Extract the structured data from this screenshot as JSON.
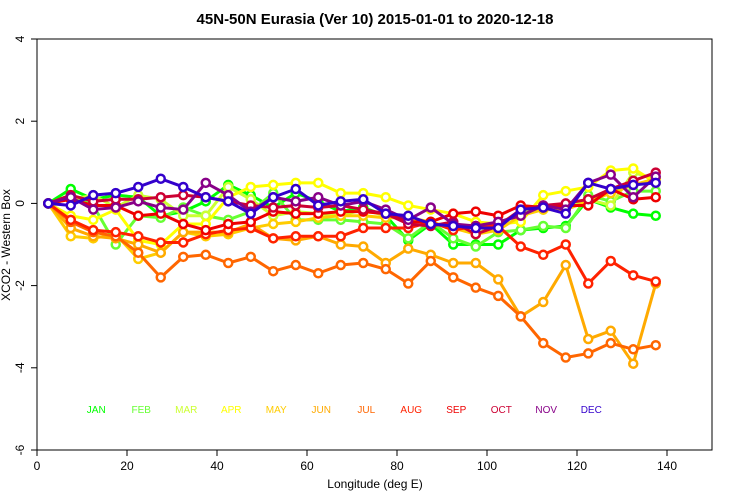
{
  "chart_data": {
    "type": "line",
    "title": "45N-50N Eurasia (Ver 10)   2015-01-01 to 2020-12-18",
    "xlabel": "Longitude (deg E)",
    "ylabel": "XCO2 - Western Box",
    "xlim": [
      0,
      150
    ],
    "ylim": [
      -6,
      4
    ],
    "xticks": [
      0,
      20,
      40,
      60,
      80,
      100,
      120,
      140
    ],
    "yticks": [
      -6,
      -4,
      -2,
      0,
      2,
      4
    ],
    "x": [
      2.5,
      7.5,
      12.5,
      17.5,
      22.5,
      27.5,
      32.5,
      37.5,
      42.5,
      47.5,
      52.5,
      57.5,
      62.5,
      67.5,
      72.5,
      77.5,
      82.5,
      87.5,
      92.5,
      97.5,
      102.5,
      107.5,
      112.5,
      117.5,
      122.5,
      127.5,
      132.5,
      137.5
    ],
    "series": [
      {
        "name": "JAN",
        "color": "#00ff00",
        "values": [
          0,
          0.35,
          0.1,
          0.2,
          0.15,
          -0.3,
          -0.2,
          0.05,
          0.45,
          0.2,
          -0.1,
          0.25,
          0.05,
          -0.2,
          -0.1,
          -0.3,
          -0.9,
          -0.5,
          -1.0,
          -1.0,
          -1.0,
          -0.65,
          -0.6,
          -0.55,
          0.1,
          -0.1,
          -0.25,
          -0.3
        ]
      },
      {
        "name": "FEB",
        "color": "#66ff33",
        "values": [
          0,
          0.2,
          -0.05,
          -1.0,
          -0.3,
          -0.35,
          -0.1,
          -0.3,
          -0.4,
          -0.2,
          0.25,
          -0.4,
          -0.4,
          -0.4,
          -0.45,
          -0.5,
          -0.85,
          -0.45,
          -0.85,
          -1.05,
          -0.7,
          -0.65,
          -0.55,
          -0.6,
          0.2,
          0.05,
          0.3,
          0.3
        ]
      },
      {
        "name": "MAR",
        "color": "#ccff33",
        "values": [
          0,
          0.1,
          0.2,
          -0.1,
          0.2,
          0.1,
          -0.3,
          -0.3,
          0.4,
          0.1,
          -0.3,
          -0.2,
          -0.25,
          -0.3,
          -0.15,
          -0.3,
          -0.35,
          -0.5,
          -0.55,
          -0.75,
          -0.5,
          -0.2,
          -0.15,
          -0.1,
          0.1,
          -0.05,
          0.75,
          0.6
        ]
      },
      {
        "name": "APR",
        "color": "#ffff00",
        "values": [
          0,
          -0.3,
          -0.4,
          -0.15,
          -0.9,
          -1.0,
          -0.5,
          -0.5,
          0.15,
          0.4,
          0.45,
          0.5,
          0.5,
          0.25,
          0.25,
          0.15,
          -0.05,
          -0.15,
          -0.25,
          -0.45,
          -0.5,
          -0.45,
          0.2,
          0.3,
          0.4,
          0.8,
          0.85,
          0.5
        ]
      },
      {
        "name": "MAY",
        "color": "#ffcc00",
        "values": [
          0,
          -0.8,
          -0.85,
          -0.75,
          -1.35,
          -1.2,
          -0.7,
          -0.8,
          -0.75,
          -0.6,
          -0.5,
          -0.45,
          -0.35,
          -0.3,
          -0.3,
          -0.35,
          -0.35,
          -0.45,
          -0.6,
          -0.75,
          -0.65,
          -0.3,
          -0.15,
          -0.15,
          0.05,
          0.25,
          0.45,
          0.6
        ]
      },
      {
        "name": "JUN",
        "color": "#ffaa00",
        "values": [
          0,
          -0.6,
          -0.8,
          -0.85,
          -1.0,
          -1.2,
          -0.7,
          -0.7,
          -0.7,
          -0.5,
          -0.85,
          -0.9,
          -0.8,
          -1.0,
          -1.05,
          -1.45,
          -1.1,
          -1.25,
          -1.45,
          -1.45,
          -1.85,
          -2.75,
          -2.4,
          -1.5,
          -3.3,
          -3.1,
          -3.9,
          -1.95
        ]
      },
      {
        "name": "JUL",
        "color": "#ff6600",
        "values": [
          0,
          -0.45,
          -0.7,
          -0.8,
          -1.2,
          -1.8,
          -1.3,
          -1.25,
          -1.45,
          -1.3,
          -1.65,
          -1.5,
          -1.7,
          -1.5,
          -1.45,
          -1.6,
          -1.95,
          -1.4,
          -1.8,
          -2.05,
          -2.25,
          -2.75,
          -3.4,
          -3.75,
          -3.65,
          -3.4,
          -3.55,
          -3.45
        ]
      },
      {
        "name": "AUG",
        "color": "#ff2200",
        "values": [
          0,
          -0.4,
          -0.65,
          -0.7,
          -0.8,
          -0.95,
          -0.95,
          -0.75,
          -0.65,
          -0.6,
          -0.85,
          -0.8,
          -0.8,
          -0.8,
          -0.6,
          -0.6,
          -0.6,
          -0.45,
          -0.65,
          -0.55,
          -0.55,
          -1.05,
          -1.25,
          -1.0,
          -1.95,
          -1.4,
          -1.75,
          -1.9
        ]
      },
      {
        "name": "SEP",
        "color": "#ee0000",
        "values": [
          0,
          0.1,
          -0.05,
          -0.05,
          -0.3,
          -0.25,
          -0.5,
          -0.65,
          -0.5,
          -0.45,
          -0.2,
          -0.25,
          -0.25,
          -0.2,
          -0.2,
          -0.25,
          -0.45,
          -0.45,
          -0.25,
          -0.2,
          -0.3,
          -0.05,
          -0.1,
          -0.05,
          -0.05,
          0.35,
          0.1,
          0.15
        ]
      },
      {
        "name": "OCT",
        "color": "#cc0033",
        "values": [
          0,
          0.2,
          0.05,
          0.1,
          0.1,
          0.15,
          0.2,
          0.15,
          0.05,
          -0.05,
          -0.1,
          -0.05,
          -0.1,
          -0.05,
          -0.15,
          -0.25,
          -0.5,
          -0.55,
          -0.45,
          -0.75,
          -0.55,
          -0.15,
          -0.05,
          0.0,
          0.1,
          0.35,
          0.55,
          0.75
        ]
      },
      {
        "name": "NOV",
        "color": "#880088",
        "values": [
          0,
          0.15,
          -0.15,
          -0.1,
          0.05,
          -0.1,
          -0.15,
          0.5,
          0.2,
          -0.2,
          0.15,
          0.05,
          0.15,
          -0.05,
          0.05,
          -0.15,
          -0.4,
          -0.1,
          -0.5,
          -0.55,
          -0.45,
          -0.3,
          -0.05,
          -0.15,
          0.5,
          0.7,
          0.15,
          0.65
        ]
      },
      {
        "name": "DEC",
        "color": "#3300cc",
        "values": [
          0,
          -0.05,
          0.2,
          0.25,
          0.4,
          0.6,
          0.4,
          0.15,
          0.05,
          -0.25,
          0.15,
          0.35,
          -0.05,
          0.05,
          0.1,
          -0.25,
          -0.3,
          -0.5,
          -0.55,
          -0.6,
          -0.6,
          -0.15,
          -0.1,
          -0.25,
          0.5,
          0.35,
          0.45,
          0.5
        ]
      }
    ],
    "legend": [
      "JAN",
      "FEB",
      "MAR",
      "APR",
      "MAY",
      "JUN",
      "JUL",
      "AUG",
      "SEP",
      "OCT",
      "NOV",
      "DEC"
    ],
    "legend_y": -5,
    "legend_placement": "bottom inside plot",
    "grid": false
  }
}
